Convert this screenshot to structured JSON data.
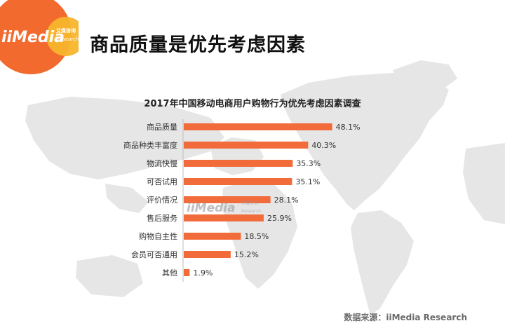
{
  "header": {
    "logo_text": "iiMedia",
    "logo_sub_cn": "艾媒咨询",
    "logo_sub_en": "Research",
    "title": "商品质量是优先考虑因素"
  },
  "footer": {
    "source": "数据来源：iiMedia Research"
  },
  "colors": {
    "bar": "#f26b3a",
    "logo_orange": "#f26a2e",
    "logo_yellow": "#f7b52c",
    "map": "#e6e6e6"
  },
  "chart_data": {
    "type": "bar",
    "orientation": "horizontal",
    "title": "2017年中国移动电商用户购物行为优先考虑因素调查",
    "categories": [
      "商品质量",
      "商品种类丰富度",
      "物流快慢",
      "可否试用",
      "评价情况",
      "售后服务",
      "购物自主性",
      "会员可否通用",
      "其他"
    ],
    "values": [
      48.1,
      40.3,
      35.3,
      35.1,
      28.1,
      25.9,
      18.5,
      15.2,
      1.9
    ],
    "value_labels": [
      "48.1%",
      "40.3%",
      "35.3%",
      "35.1%",
      "28.1%",
      "25.9%",
      "18.5%",
      "15.2%",
      "1.9%"
    ],
    "unit": "%",
    "xlim": [
      0,
      55
    ],
    "grid": false,
    "legend": "none"
  }
}
